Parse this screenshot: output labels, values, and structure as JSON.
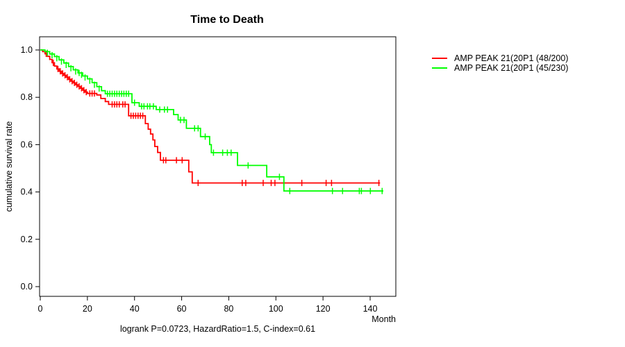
{
  "chart_data": {
    "type": "line",
    "subtype": "kaplan-meier-step",
    "title": "Time to Death",
    "xlabel": "Month",
    "ylabel": "cumulative survival rate",
    "annotation": "logrank P=0.0723, HazardRatio=1.5, C-index=0.61",
    "xlim": [
      0,
      148
    ],
    "ylim": [
      0,
      1
    ],
    "xticks": [
      0,
      20,
      40,
      60,
      80,
      100,
      120,
      140
    ],
    "yticks": [
      "0.0",
      "0.2",
      "0.4",
      "0.6",
      "0.8",
      "1.0"
    ],
    "grid": false,
    "legend_position": "right-outside",
    "axis_color": "#000000",
    "series": [
      {
        "name": "AMP PEAK 21(20P1 (48/200)",
        "color": "#ff0000",
        "events": "48/200",
        "steps": [
          [
            0,
            1.0
          ],
          [
            1,
            0.993
          ],
          [
            2,
            0.984
          ],
          [
            3,
            0.973
          ],
          [
            4,
            0.96
          ],
          [
            5,
            0.946
          ],
          [
            6,
            0.932
          ],
          [
            7,
            0.92
          ],
          [
            8,
            0.91
          ],
          [
            9,
            0.901
          ],
          [
            10,
            0.893
          ],
          [
            11,
            0.885
          ],
          [
            12,
            0.876
          ],
          [
            13,
            0.868
          ],
          [
            14,
            0.861
          ],
          [
            15,
            0.853
          ],
          [
            16,
            0.846
          ],
          [
            17,
            0.838
          ],
          [
            18,
            0.83
          ],
          [
            19,
            0.822
          ],
          [
            20,
            0.816
          ],
          [
            24,
            0.81
          ],
          [
            25.7,
            0.795
          ],
          [
            27.6,
            0.782
          ],
          [
            29,
            0.77
          ],
          [
            37.5,
            0.722
          ],
          [
            44.6,
            0.689
          ],
          [
            45.8,
            0.665
          ],
          [
            46.8,
            0.645
          ],
          [
            47.8,
            0.62
          ],
          [
            48.6,
            0.592
          ],
          [
            49.8,
            0.567
          ],
          [
            51,
            0.534
          ],
          [
            63,
            0.485
          ],
          [
            64.5,
            0.438
          ],
          [
            144.2,
            0.438
          ]
        ],
        "censors": [
          [
            2.5,
            0.984
          ],
          [
            5.5,
            0.946
          ],
          [
            7.5,
            0.92
          ],
          [
            8.5,
            0.91
          ],
          [
            9.5,
            0.901
          ],
          [
            10.5,
            0.893
          ],
          [
            11.5,
            0.885
          ],
          [
            12.5,
            0.876
          ],
          [
            13.5,
            0.868
          ],
          [
            14.5,
            0.861
          ],
          [
            15.5,
            0.853
          ],
          [
            16.5,
            0.846
          ],
          [
            17.5,
            0.838
          ],
          [
            18.5,
            0.83
          ],
          [
            19.5,
            0.822
          ],
          [
            21,
            0.816
          ],
          [
            22,
            0.816
          ],
          [
            23,
            0.816
          ],
          [
            30.5,
            0.77
          ],
          [
            31.5,
            0.77
          ],
          [
            32.5,
            0.77
          ],
          [
            33.5,
            0.77
          ],
          [
            35,
            0.77
          ],
          [
            36,
            0.77
          ],
          [
            38.5,
            0.722
          ],
          [
            39.5,
            0.722
          ],
          [
            40.5,
            0.722
          ],
          [
            41.5,
            0.722
          ],
          [
            42.5,
            0.722
          ],
          [
            43.5,
            0.722
          ],
          [
            52.3,
            0.534
          ],
          [
            53.3,
            0.534
          ],
          [
            57.8,
            0.534
          ],
          [
            60.2,
            0.534
          ],
          [
            67,
            0.438
          ],
          [
            85.7,
            0.438
          ],
          [
            87.2,
            0.438
          ],
          [
            94.6,
            0.438
          ],
          [
            98,
            0.438
          ],
          [
            99.6,
            0.438
          ],
          [
            111,
            0.438
          ],
          [
            121.3,
            0.438
          ],
          [
            123.6,
            0.438
          ],
          [
            143.7,
            0.438
          ]
        ]
      },
      {
        "name": "AMP PEAK 21(20P1 (45/230)",
        "color": "#00ff00",
        "events": "45/230",
        "steps": [
          [
            0,
            1.0
          ],
          [
            2,
            0.993
          ],
          [
            4,
            0.983
          ],
          [
            6,
            0.972
          ],
          [
            8,
            0.958
          ],
          [
            10,
            0.945
          ],
          [
            12,
            0.93
          ],
          [
            14,
            0.916
          ],
          [
            16,
            0.903
          ],
          [
            18,
            0.89
          ],
          [
            20,
            0.878
          ],
          [
            22,
            0.862
          ],
          [
            24,
            0.845
          ],
          [
            26,
            0.828
          ],
          [
            27.6,
            0.815
          ],
          [
            38.9,
            0.777
          ],
          [
            42,
            0.762
          ],
          [
            49.2,
            0.748
          ],
          [
            56.6,
            0.727
          ],
          [
            58.5,
            0.704
          ],
          [
            62,
            0.669
          ],
          [
            68,
            0.634
          ],
          [
            71.9,
            0.6
          ],
          [
            72.6,
            0.566
          ],
          [
            83.7,
            0.512
          ],
          [
            96.1,
            0.464
          ],
          [
            103.4,
            0.404
          ],
          [
            145.6,
            0.404
          ]
        ],
        "censors": [
          [
            3,
            0.988
          ],
          [
            5,
            0.978
          ],
          [
            7,
            0.965
          ],
          [
            9,
            0.951
          ],
          [
            11,
            0.937
          ],
          [
            13,
            0.923
          ],
          [
            15,
            0.909
          ],
          [
            16.5,
            0.903
          ],
          [
            17.5,
            0.895
          ],
          [
            19,
            0.884
          ],
          [
            21,
            0.87
          ],
          [
            23,
            0.853
          ],
          [
            25,
            0.837
          ],
          [
            28.5,
            0.815
          ],
          [
            29.5,
            0.815
          ],
          [
            30.5,
            0.815
          ],
          [
            31.5,
            0.815
          ],
          [
            32.5,
            0.815
          ],
          [
            33.5,
            0.815
          ],
          [
            34.5,
            0.815
          ],
          [
            35.5,
            0.815
          ],
          [
            36.5,
            0.815
          ],
          [
            37.5,
            0.815
          ],
          [
            40,
            0.777
          ],
          [
            43,
            0.762
          ],
          [
            44,
            0.762
          ],
          [
            45.5,
            0.762
          ],
          [
            46.5,
            0.762
          ],
          [
            48,
            0.762
          ],
          [
            50.7,
            0.748
          ],
          [
            52.7,
            0.748
          ],
          [
            54,
            0.748
          ],
          [
            59.5,
            0.704
          ],
          [
            61,
            0.704
          ],
          [
            65.5,
            0.669
          ],
          [
            67,
            0.669
          ],
          [
            70,
            0.634
          ],
          [
            73.5,
            0.566
          ],
          [
            77.4,
            0.566
          ],
          [
            79.4,
            0.566
          ],
          [
            81,
            0.566
          ],
          [
            88.2,
            0.512
          ],
          [
            101.5,
            0.464
          ],
          [
            105.9,
            0.404
          ],
          [
            124,
            0.404
          ],
          [
            128.3,
            0.404
          ],
          [
            135.4,
            0.404
          ],
          [
            136.3,
            0.404
          ],
          [
            140.1,
            0.404
          ],
          [
            145.1,
            0.404
          ]
        ]
      }
    ]
  }
}
